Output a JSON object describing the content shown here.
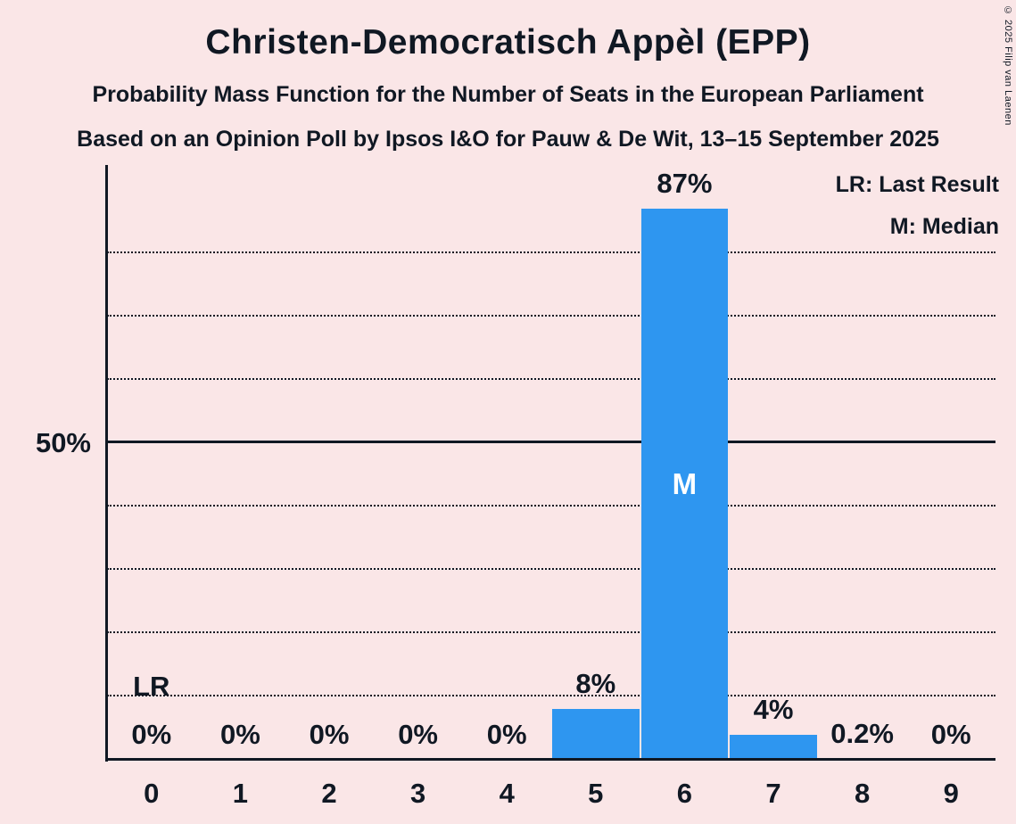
{
  "title": "Christen-Democratisch Appèl (EPP)",
  "subtitle1": "Probability Mass Function for the Number of Seats in the European Parliament",
  "subtitle2": "Based on an Opinion Poll by Ipsos I&O for Pauw & De Wit, 13–15 September 2025",
  "legend": {
    "lr": "LR: Last Result",
    "m": "M: Median"
  },
  "y_axis_label": "50%",
  "copyright": "© 2025 Filip van Laenen",
  "colors": {
    "background": "#fae6e7",
    "bar": "#2e96f0",
    "text": "#101823",
    "median_text": "#ffffff"
  },
  "chart_data": {
    "type": "bar",
    "title": "Probability Mass Function for the Number of Seats in the European Parliament",
    "xlabel": "",
    "ylabel": "",
    "categories": [
      "0",
      "1",
      "2",
      "3",
      "4",
      "5",
      "6",
      "7",
      "8",
      "9"
    ],
    "values": [
      0,
      0,
      0,
      0,
      0,
      8,
      87,
      4,
      0.2,
      0
    ],
    "labels": [
      "0%",
      "0%",
      "0%",
      "0%",
      "0%",
      "8%",
      "87%",
      "4%",
      "0.2%",
      "0%"
    ],
    "ylim": [
      0,
      94
    ],
    "grid": "horizontal-dotted",
    "solid_gridline": 50,
    "dotted_gridlines": [
      10,
      20,
      30,
      40,
      60,
      70,
      80
    ],
    "median_marker": {
      "category_index": 6,
      "label": "M"
    },
    "last_result_marker": {
      "category_index": 0,
      "label": "LR"
    },
    "legend_position": "top-right"
  }
}
